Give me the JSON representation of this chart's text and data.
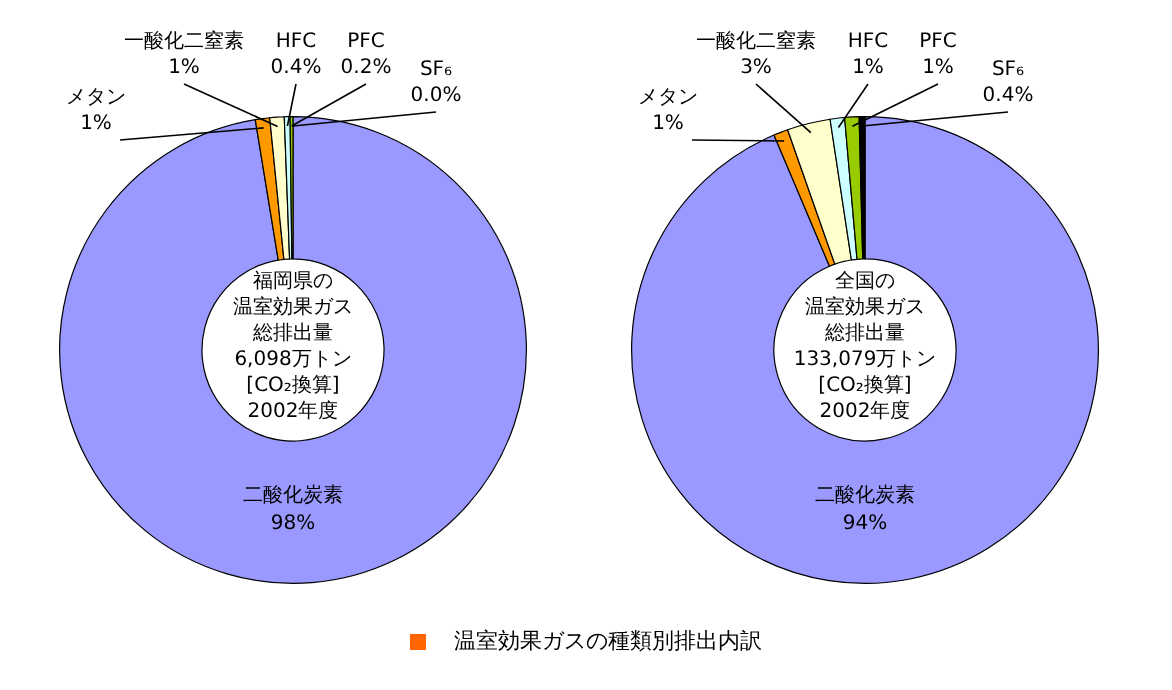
{
  "chart_data": [
    {
      "type": "donut",
      "annotations": [
        "福岡県の",
        "温室効果ガス",
        "総排出量",
        "6,098万トン",
        "[CO₂換算]",
        "2002年度"
      ],
      "categories": [
        "二酸化炭素",
        "メタン",
        "一酸化二窒素",
        "HFC",
        "PFC",
        "SF₆"
      ],
      "values": [
        98,
        1,
        1,
        0.4,
        0.2,
        0.0
      ],
      "value_labels": [
        "98%",
        "1%",
        "1%",
        "0.4%",
        "0.2%",
        "0.0%"
      ],
      "colors": [
        "#9999ff",
        "#ff9900",
        "#ffffcc",
        "#ccffff",
        "#99cc00",
        "#000000"
      ],
      "legend": false,
      "legend_title": "温室効果ガスの種類別排出内訳"
    },
    {
      "type": "donut",
      "annotations": [
        "全国の",
        "温室効果ガス",
        "総排出量",
        "133,079万トン",
        "[CO₂換算]",
        "2002年度"
      ],
      "categories": [
        "二酸化炭素",
        "メタン",
        "一酸化二窒素",
        "HFC",
        "PFC",
        "SF₆"
      ],
      "values": [
        94,
        1,
        3,
        1,
        1,
        0.4
      ],
      "value_labels": [
        "94%",
        "1%",
        "3%",
        "1%",
        "1%",
        "0.4%"
      ],
      "colors": [
        "#9999ff",
        "#ff9900",
        "#ffffcc",
        "#ccffff",
        "#99cc00",
        "#000000"
      ],
      "legend": false
    }
  ]
}
